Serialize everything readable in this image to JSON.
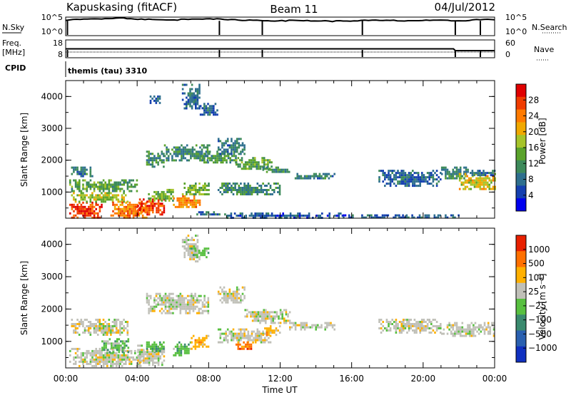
{
  "header": {
    "station": "Kapuskasing (fitACF)",
    "beam": "Beam 11",
    "date": "04/Jul/2012"
  },
  "strips": {
    "nsky_label": "N.Sky",
    "nsky_ticks": [
      "10^5",
      "10^0"
    ],
    "nsearch_label": "N.Search",
    "nsearch_ticks": [
      "10^5",
      "10^0"
    ],
    "freq_label_1": "Freq.",
    "freq_label_2": "[MHz]",
    "freq_ticks": [
      "18",
      "8"
    ],
    "nave_label": "Nave",
    "nave_ticks": [
      "60",
      "0"
    ],
    "cpid_label": "CPID",
    "cpid_value": "themis (tau) 3310"
  },
  "colors": {
    "power": [
      "#0000ee",
      "#1540b0",
      "#2e6f8e",
      "#3d8a5a",
      "#5aa32b",
      "#a6c42a",
      "#f0a800",
      "#ff7a00",
      "#f03c00",
      "#e00000"
    ],
    "velocity": [
      "#1030c0",
      "#2a60b0",
      "#3a8a6e",
      "#58c040",
      "#c0c0b8",
      "#ffb000",
      "#ff7000",
      "#e82000"
    ]
  },
  "chart_data": [
    {
      "type": "heatmap",
      "name": "power",
      "ylabel": "Slant Range [km]",
      "xlabel": "",
      "xlim": [
        0,
        24
      ],
      "ylim": [
        180,
        4500
      ],
      "y_ticks": [
        1000,
        2000,
        3000,
        4000
      ],
      "x_ticks": [
        0,
        4,
        8,
        12,
        16,
        20,
        24
      ],
      "colorbar_label": "Power [dB]",
      "colorbar_ticks": [
        "28",
        "24",
        "20",
        "16",
        "12",
        "8",
        "4"
      ],
      "colorbar_range": [
        0,
        30
      ],
      "regions": [
        {
          "t0": 0.2,
          "t1": 2.0,
          "r0": 200,
          "r1": 700,
          "v": 27
        },
        {
          "t0": 0.3,
          "t1": 3.5,
          "r0": 700,
          "r1": 1000,
          "v": 16
        },
        {
          "t0": 0.2,
          "t1": 4.0,
          "r0": 1000,
          "r1": 1400,
          "v": 12
        },
        {
          "t0": 0.3,
          "t1": 1.5,
          "r0": 1500,
          "r1": 1800,
          "v": 8
        },
        {
          "t0": 2.5,
          "t1": 4.5,
          "r0": 200,
          "r1": 700,
          "v": 23
        },
        {
          "t0": 4.0,
          "t1": 5.5,
          "r0": 300,
          "r1": 800,
          "v": 27
        },
        {
          "t0": 4.5,
          "t1": 6.0,
          "r0": 700,
          "r1": 1100,
          "v": 14
        },
        {
          "t0": 4.5,
          "t1": 5.5,
          "r0": 1800,
          "r1": 2300,
          "v": 10
        },
        {
          "t0": 5.5,
          "t1": 8.0,
          "r0": 2000,
          "r1": 2500,
          "v": 9
        },
        {
          "t0": 6.0,
          "t1": 7.5,
          "r0": 500,
          "r1": 900,
          "v": 22
        },
        {
          "t0": 6.5,
          "t1": 8.0,
          "r0": 900,
          "r1": 1300,
          "v": 14
        },
        {
          "t0": 7.0,
          "t1": 9.0,
          "r0": 300,
          "r1": 400,
          "v": 6
        },
        {
          "t0": 7.5,
          "t1": 9.5,
          "r0": 1900,
          "r1": 2300,
          "v": 11
        },
        {
          "t0": 8.5,
          "t1": 10.0,
          "r0": 2200,
          "r1": 2700,
          "v": 7
        },
        {
          "t0": 6.5,
          "t1": 7.5,
          "r0": 3600,
          "r1": 4400,
          "v": 6
        },
        {
          "t0": 4.7,
          "t1": 5.3,
          "r0": 3800,
          "r1": 4100,
          "v": 5
        },
        {
          "t0": 7.5,
          "t1": 8.5,
          "r0": 3400,
          "r1": 3800,
          "v": 6
        },
        {
          "t0": 8.5,
          "t1": 12.0,
          "r0": 900,
          "r1": 1300,
          "v": 9
        },
        {
          "t0": 9.5,
          "t1": 11.5,
          "r0": 1700,
          "r1": 2100,
          "v": 12
        },
        {
          "t0": 11.0,
          "t1": 12.5,
          "r0": 1600,
          "r1": 1800,
          "v": 10
        },
        {
          "t0": 12.5,
          "t1": 15.0,
          "r0": 1400,
          "r1": 1600,
          "v": 8
        },
        {
          "t0": 9.0,
          "t1": 15.5,
          "r0": 220,
          "r1": 360,
          "v": 5
        },
        {
          "t0": 15.5,
          "t1": 22.0,
          "r0": 220,
          "r1": 300,
          "v": 5
        },
        {
          "t0": 17.5,
          "t1": 21.0,
          "r0": 1200,
          "r1": 1700,
          "v": 6
        },
        {
          "t0": 21.0,
          "t1": 22.5,
          "r0": 1400,
          "r1": 1800,
          "v": 9
        },
        {
          "t0": 22.0,
          "t1": 24.0,
          "r0": 1100,
          "r1": 1600,
          "v": 18
        },
        {
          "t0": 22.5,
          "t1": 24.0,
          "r0": 1500,
          "r1": 1700,
          "v": 7
        }
      ]
    },
    {
      "type": "heatmap",
      "name": "velocity",
      "ylabel": "Slant Range [km]",
      "xlabel": "Time UT",
      "xlim": [
        0,
        24
      ],
      "ylim": [
        180,
        4500
      ],
      "y_ticks": [
        1000,
        2000,
        3000,
        4000
      ],
      "x_ticks": [
        0,
        4,
        8,
        12,
        16,
        20,
        24
      ],
      "x_tick_labels": [
        "00:00",
        "04:00",
        "08:00",
        "12:00",
        "16:00",
        "20:00",
        "00:00"
      ],
      "colorbar_label": "Velocity [m s⁻¹]",
      "colorbar_ticks": [
        "1000",
        "500",
        "100",
        "25",
        "−25",
        "−100",
        "−500",
        "−1000"
      ],
      "regions": [
        {
          "t0": 0.2,
          "t1": 4.2,
          "r0": 250,
          "r1": 800,
          "c": 4
        },
        {
          "t0": 0.3,
          "t1": 3.5,
          "r0": 1200,
          "r1": 1700,
          "c": 4
        },
        {
          "t0": 2.0,
          "t1": 3.5,
          "r0": 700,
          "r1": 1100,
          "c": 3
        },
        {
          "t0": 4.0,
          "t1": 5.5,
          "r0": 300,
          "r1": 900,
          "c": 4
        },
        {
          "t0": 4.5,
          "t1": 5.5,
          "r0": 700,
          "r1": 1000,
          "c": 3
        },
        {
          "t0": 4.5,
          "t1": 8.0,
          "r0": 1900,
          "r1": 2500,
          "c": 4
        },
        {
          "t0": 6.0,
          "t1": 7.0,
          "r0": 600,
          "r1": 1000,
          "c": 3
        },
        {
          "t0": 7.0,
          "t1": 8.0,
          "r0": 800,
          "r1": 1200,
          "c": 5
        },
        {
          "t0": 6.5,
          "t1": 7.5,
          "r0": 3500,
          "r1": 4300,
          "c": 4
        },
        {
          "t0": 7.0,
          "t1": 8.0,
          "r0": 3600,
          "r1": 3900,
          "c": 3
        },
        {
          "t0": 8.5,
          "t1": 10.0,
          "r0": 2200,
          "r1": 2700,
          "c": 4
        },
        {
          "t0": 8.5,
          "t1": 11.5,
          "r0": 1000,
          "r1": 1400,
          "c": 4
        },
        {
          "t0": 9.5,
          "t1": 10.5,
          "r0": 800,
          "r1": 1000,
          "c": 6
        },
        {
          "t0": 10.0,
          "t1": 12.5,
          "r0": 1600,
          "r1": 2000,
          "c": 4
        },
        {
          "t0": 12.5,
          "t1": 15.0,
          "r0": 1400,
          "r1": 1600,
          "c": 4
        },
        {
          "t0": 17.5,
          "t1": 21.0,
          "r0": 1300,
          "r1": 1700,
          "c": 4
        },
        {
          "t0": 21.0,
          "t1": 24.0,
          "r0": 1200,
          "r1": 1600,
          "c": 4
        },
        {
          "t0": 11.0,
          "t1": 12.0,
          "r0": 1200,
          "r1": 1500,
          "c": 5
        }
      ]
    },
    {
      "type": "line",
      "name": "nsky",
      "ylim": [
        0,
        5
      ],
      "x": [
        0,
        1,
        2,
        3,
        4,
        5,
        6,
        7,
        8,
        9,
        10,
        11,
        12,
        13,
        14,
        15,
        16,
        17,
        18,
        19,
        20,
        21,
        22,
        23,
        24
      ],
      "values": [
        4.2,
        4.4,
        4.6,
        4.8,
        4.5,
        4.3,
        4.2,
        4.5,
        4.6,
        4.3,
        4.2,
        4.1,
        4.0,
        4.1,
        4.0,
        3.9,
        4.0,
        4.1,
        4.1,
        4.0,
        4.1,
        4.1,
        4.0,
        4.3,
        4.4
      ]
    },
    {
      "type": "line",
      "name": "nave",
      "ylim": [
        0,
        60
      ],
      "x": [
        0,
        21.7,
        21.8,
        24
      ],
      "values": [
        30,
        30,
        24,
        24
      ]
    }
  ]
}
